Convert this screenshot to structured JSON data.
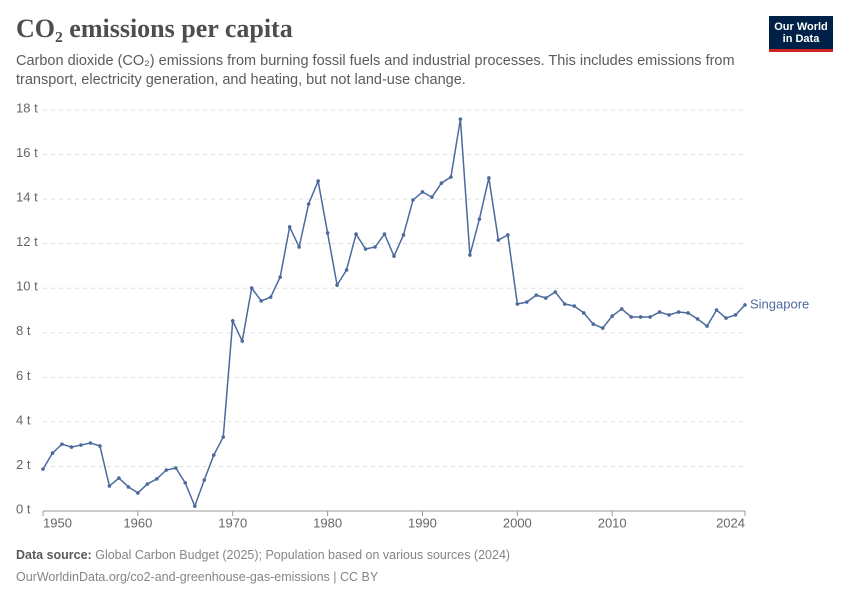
{
  "chart_data": {
    "type": "line",
    "title": "CO₂ emissions per capita",
    "subtitle": "Carbon dioxide (CO₂) emissions from burning fossil fuels and industrial processes. This includes emissions from transport, electricity generation, and heating, but not land-use change.",
    "x": [
      1950,
      1951,
      1952,
      1953,
      1954,
      1955,
      1956,
      1957,
      1958,
      1959,
      1960,
      1961,
      1962,
      1963,
      1964,
      1965,
      1966,
      1967,
      1968,
      1969,
      1970,
      1971,
      1972,
      1973,
      1974,
      1975,
      1976,
      1977,
      1978,
      1979,
      1980,
      1981,
      1982,
      1983,
      1984,
      1985,
      1986,
      1987,
      1988,
      1989,
      1990,
      1991,
      1992,
      1993,
      1994,
      1995,
      1996,
      1997,
      1998,
      1999,
      2000,
      2001,
      2002,
      2003,
      2004,
      2005,
      2006,
      2007,
      2008,
      2009,
      2010,
      2011,
      2012,
      2013,
      2014,
      2015,
      2016,
      2017,
      2018,
      2019,
      2020,
      2021,
      2022,
      2023,
      2024
    ],
    "series": [
      {
        "name": "Singapore",
        "color": "#4c6a9c",
        "values": [
          1.88,
          2.6,
          3.0,
          2.87,
          2.96,
          3.05,
          2.92,
          1.12,
          1.48,
          1.08,
          0.81,
          1.21,
          1.44,
          1.84,
          1.93,
          1.26,
          0.22,
          1.39,
          2.51,
          3.32,
          8.53,
          7.63,
          10.01,
          9.43,
          9.6,
          10.5,
          12.75,
          11.85,
          13.78,
          14.81,
          12.48,
          10.14,
          10.82,
          12.43,
          11.76,
          11.85,
          12.43,
          11.44,
          12.39,
          13.96,
          14.32,
          14.09,
          14.72,
          14.99,
          17.59,
          11.49,
          13.1,
          14.95,
          12.16,
          12.39,
          9.29,
          9.38,
          9.69,
          9.56,
          9.83,
          9.29,
          9.2,
          8.89,
          8.39,
          8.21,
          8.75,
          9.07,
          8.71,
          8.71,
          8.71,
          8.93,
          8.8,
          8.93,
          8.89,
          8.62,
          8.3,
          9.02,
          8.66,
          8.8,
          9.25
        ]
      }
    ],
    "xlim": [
      1950,
      2024
    ],
    "xticks": [
      1950,
      1960,
      1970,
      1980,
      1990,
      2000,
      2010,
      2024
    ],
    "ylim": [
      0,
      18
    ],
    "yticks": [
      {
        "value": 0,
        "label": "0 t"
      },
      {
        "value": 2,
        "label": "2 t"
      },
      {
        "value": 4,
        "label": "4 t"
      },
      {
        "value": 6,
        "label": "6 t"
      },
      {
        "value": 8,
        "label": "8 t"
      },
      {
        "value": 10,
        "label": "10 t"
      },
      {
        "value": 12,
        "label": "12 t"
      },
      {
        "value": 14,
        "label": "14 t"
      },
      {
        "value": 16,
        "label": "16 t"
      },
      {
        "value": 18,
        "label": "18 t"
      }
    ],
    "grid": true
  },
  "logo": {
    "line1": "Our World",
    "line2": "in Data"
  },
  "footer": {
    "source_label": "Data source:",
    "source": "Global Carbon Budget (2025); Population based on various sources (2024)",
    "url": "OurWorldinData.org/co2-and-greenhouse-gas-emissions | CC BY"
  }
}
